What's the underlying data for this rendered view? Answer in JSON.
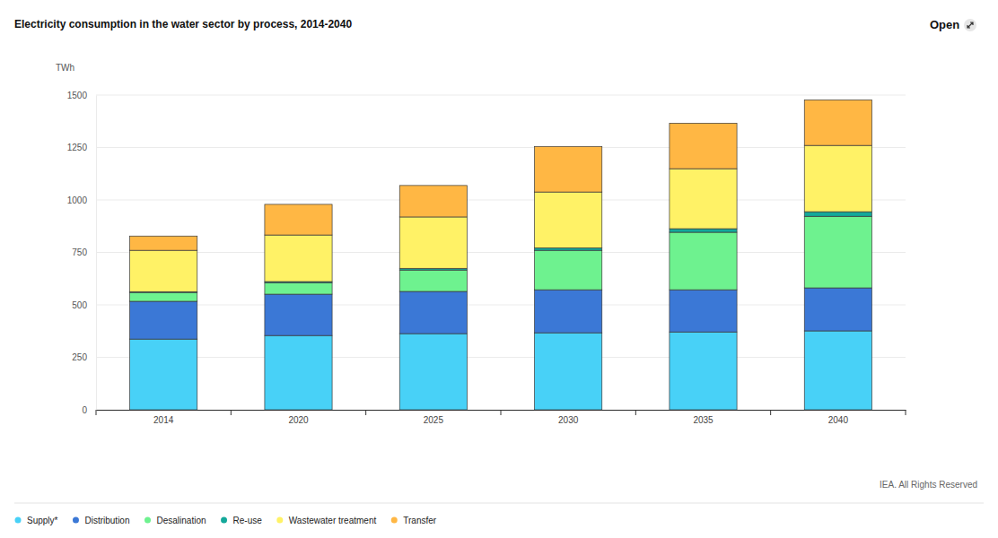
{
  "chart_data": {
    "type": "bar",
    "stacked": true,
    "title": "Electricity consumption in the water sector by process, 2014-2040",
    "y_label": "TWh",
    "open_label": "Open",
    "source": "IEA. All Rights Reserved",
    "categories": [
      "2014",
      "2020",
      "2025",
      "2030",
      "2035",
      "2040"
    ],
    "series": [
      {
        "name": "Supply*",
        "color": "#48d1f7",
        "values": [
          337,
          354,
          363,
          367,
          371,
          376
        ]
      },
      {
        "name": "Distribution",
        "color": "#3b78d6",
        "values": [
          180,
          197,
          201,
          205,
          201,
          205
        ]
      },
      {
        "name": "Desalination",
        "color": "#6ef28f",
        "values": [
          42,
          55,
          102,
          188,
          274,
          341
        ]
      },
      {
        "name": "Re-use",
        "color": "#14a89a",
        "values": [
          4,
          5,
          8,
          12,
          17,
          22
        ]
      },
      {
        "name": "Wastewater treatment",
        "color": "#fff266",
        "values": [
          197,
          222,
          245,
          266,
          286,
          316
        ]
      },
      {
        "name": "Transfer",
        "color": "#ffb744",
        "values": [
          68,
          146,
          150,
          217,
          217,
          217
        ]
      }
    ],
    "ylim": [
      0,
      1500
    ],
    "yticks": [
      0,
      250,
      500,
      750,
      1000,
      1250,
      1500
    ],
    "grid": true,
    "legend": "bottom"
  }
}
